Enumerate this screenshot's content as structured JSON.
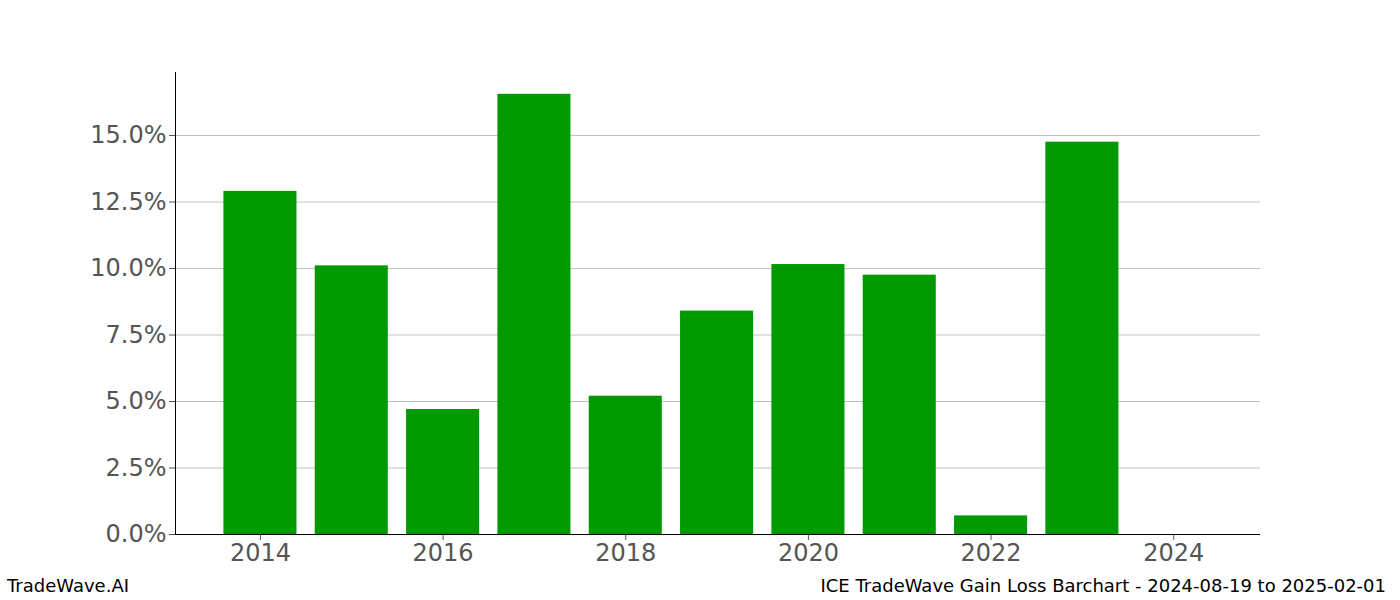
{
  "chart_data": {
    "type": "bar",
    "x": [
      2014,
      2015,
      2016,
      2017,
      2018,
      2019,
      2020,
      2021,
      2022,
      2023
    ],
    "values": [
      12.9,
      10.1,
      4.7,
      16.55,
      5.2,
      8.4,
      10.15,
      9.75,
      0.7,
      14.75
    ],
    "color": "#009900",
    "xlim": [
      2013.07,
      2024.95
    ],
    "xticks": [
      2014,
      2016,
      2018,
      2020,
      2022,
      2024
    ],
    "ylim": [
      0,
      17.37
    ],
    "yticks": [
      {
        "value": 0,
        "label": "0.0%"
      },
      {
        "value": 2.5,
        "label": "2.5%"
      },
      {
        "value": 5,
        "label": "5.0%"
      },
      {
        "value": 7.5,
        "label": "7.5%"
      },
      {
        "value": 10,
        "label": "10.0%"
      },
      {
        "value": 12.5,
        "label": "12.5%"
      },
      {
        "value": 15,
        "label": "15.0%"
      }
    ],
    "grid": true,
    "footer_left": "TradeWave.AI",
    "footer_right": "ICE TradeWave Gain Loss Barchart - 2024-08-19 to 2025-02-01"
  }
}
